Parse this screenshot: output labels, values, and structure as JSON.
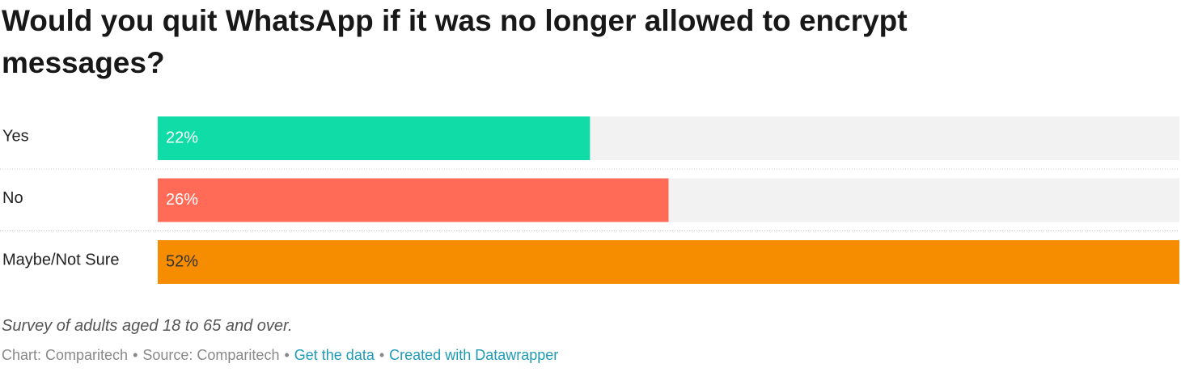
{
  "chart_data": {
    "type": "bar",
    "orientation": "horizontal",
    "title": "Would you quit WhatsApp if it was no longer allowed to encrypt messages?",
    "categories": [
      "Yes",
      "No",
      "Maybe/Not Sure"
    ],
    "values": [
      22,
      26,
      52
    ],
    "value_labels": [
      "22%",
      "26%",
      "52%"
    ],
    "colors": [
      "#0fdca6",
      "#ff6b57",
      "#f68c00"
    ],
    "xlim": [
      0,
      52
    ],
    "notes": "Survey of adults aged 18 to 65 and over.",
    "footer": {
      "chart_by": "Chart: Comparitech",
      "source": "Source: Comparitech",
      "get_data": "Get the data",
      "created_with": "Created with Datawrapper",
      "separator": "•"
    }
  }
}
